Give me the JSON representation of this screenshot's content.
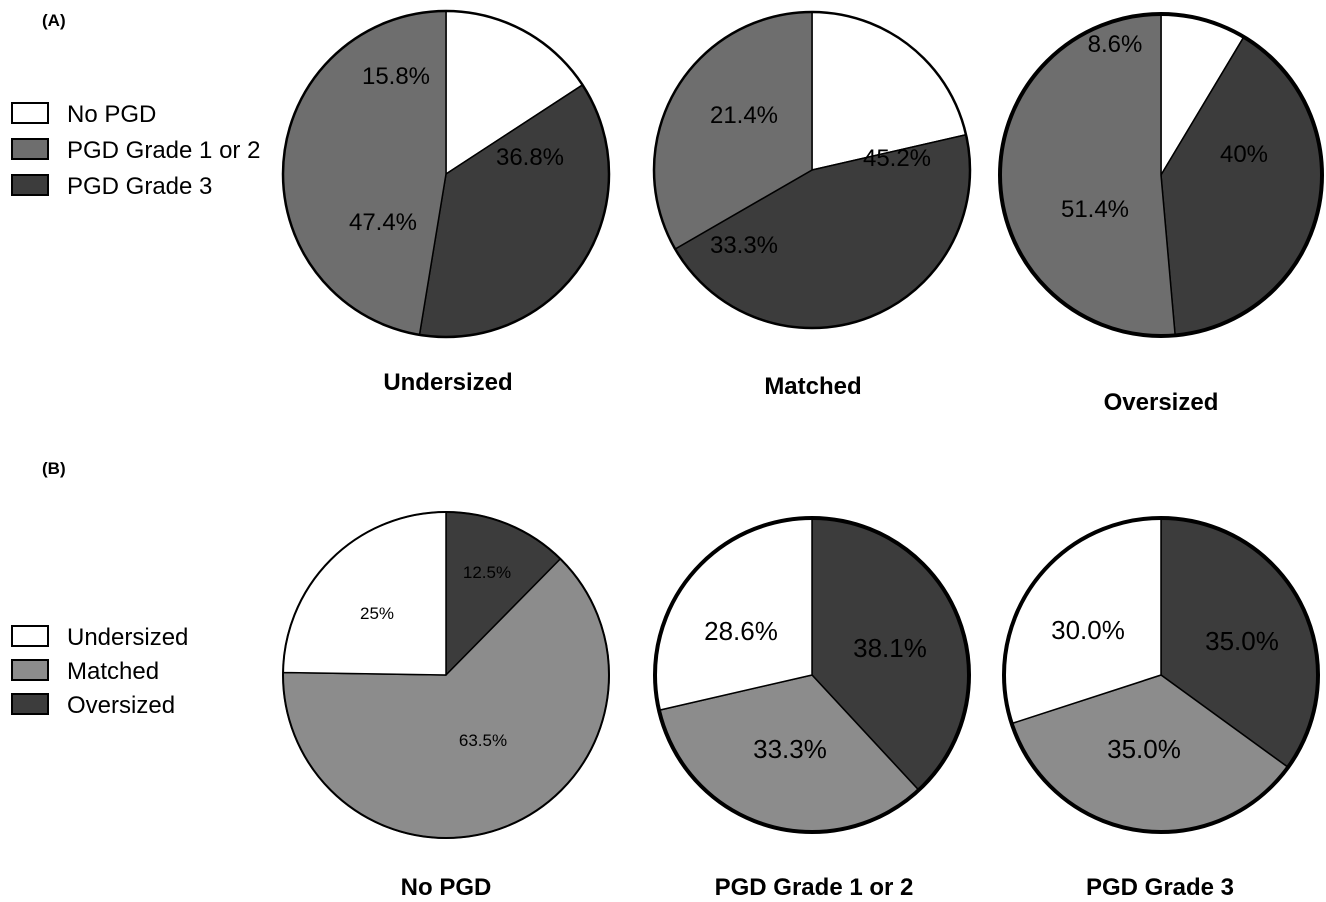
{
  "panels": [
    {
      "label": "(A)",
      "legend": [
        {
          "label": "No PGD",
          "color": "#ffffff"
        },
        {
          "label": "PGD Grade 1 or 2",
          "color": "#6e6e6e"
        },
        {
          "label": "PGD Grade 3",
          "color": "#3c3c3c"
        }
      ]
    },
    {
      "label": "(B)",
      "legend": [
        {
          "label": "Undersized",
          "color": "#ffffff"
        },
        {
          "label": "Matched",
          "color": "#8c8c8c"
        },
        {
          "label": "Oversized",
          "color": "#3c3c3c"
        }
      ]
    }
  ],
  "chart_data": [
    {
      "type": "pie",
      "title": "Undersized",
      "categories": [
        "No PGD",
        "PGD Grade 1 or 2",
        "PGD Grade 3"
      ],
      "values": [
        15.8,
        47.4,
        36.8
      ],
      "labels": [
        "15.8%",
        "47.4%",
        "36.8%"
      ],
      "colors": [
        "#ffffff",
        "#6e6e6e",
        "#3c3c3c"
      ]
    },
    {
      "type": "pie",
      "title": "Matched",
      "categories": [
        "No PGD",
        "PGD Grade 1 or 2",
        "PGD Grade 3"
      ],
      "values": [
        21.4,
        33.3,
        45.2
      ],
      "labels": [
        "21.4%",
        "33.3%",
        "45.2%"
      ],
      "colors": [
        "#ffffff",
        "#6e6e6e",
        "#3c3c3c"
      ]
    },
    {
      "type": "pie",
      "title": "Oversized",
      "categories": [
        "No PGD",
        "PGD Grade 1 or 2",
        "PGD Grade 3"
      ],
      "values": [
        8.6,
        51.4,
        40
      ],
      "labels": [
        "8.6%",
        "51.4%",
        "40%"
      ],
      "colors": [
        "#ffffff",
        "#6e6e6e",
        "#3c3c3c"
      ]
    },
    {
      "type": "pie",
      "title": "No PGD",
      "categories": [
        "Undersized",
        "Matched",
        "Oversized"
      ],
      "values": [
        25,
        63.5,
        12.5
      ],
      "labels": [
        "25%",
        "63.5%",
        "12.5%"
      ],
      "colors": [
        "#ffffff",
        "#8c8c8c",
        "#3c3c3c"
      ]
    },
    {
      "type": "pie",
      "title": "PGD Grade 1 or 2",
      "categories": [
        "Undersized",
        "Matched",
        "Oversized"
      ],
      "values": [
        28.6,
        33.3,
        38.1
      ],
      "labels": [
        "28.6%",
        "33.3%",
        "38.1%"
      ],
      "colors": [
        "#ffffff",
        "#8c8c8c",
        "#3c3c3c"
      ]
    },
    {
      "type": "pie",
      "title": "PGD Grade 3",
      "categories": [
        "Undersized",
        "Matched",
        "Oversized"
      ],
      "values": [
        30.0,
        35.0,
        35.0
      ],
      "labels": [
        "30.0%",
        "35.0%",
        "35.0%"
      ],
      "colors": [
        "#ffffff",
        "#8c8c8c",
        "#3c3c3c"
      ]
    }
  ]
}
